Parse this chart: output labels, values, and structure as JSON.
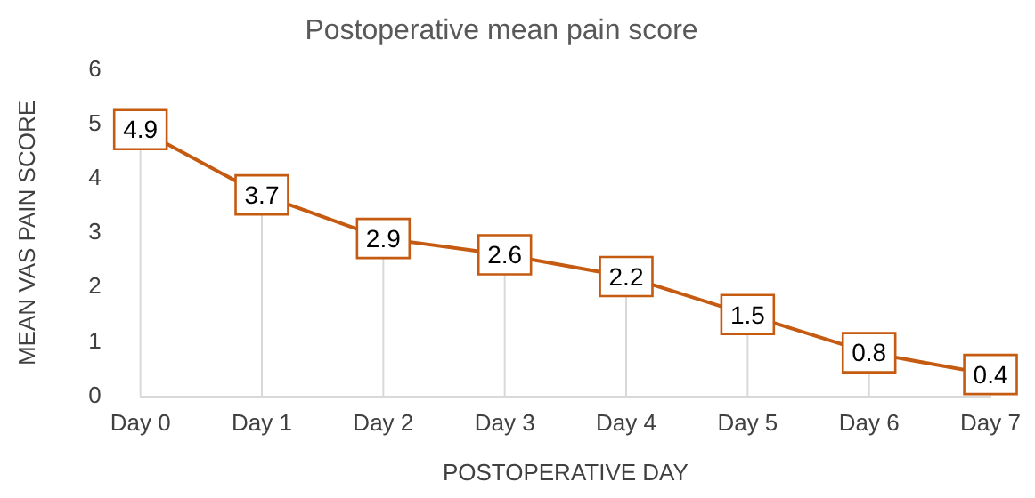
{
  "chart_data": {
    "type": "line",
    "title": "Postoperative mean pain score",
    "xlabel": "POSTOPERATIVE DAY",
    "ylabel": "MEAN VAS PAIN SCORE",
    "categories": [
      "Day 0",
      "Day 1",
      "Day 2",
      "Day 3",
      "Day 4",
      "Day 5",
      "Day 6",
      "Day 7"
    ],
    "series": [
      {
        "color": "#c55a11",
        "values": [
          4.9,
          3.7,
          2.9,
          2.6,
          2.2,
          1.5,
          0.8,
          0.4
        ]
      }
    ],
    "ylim": [
      0,
      6
    ],
    "yticks": [
      0,
      1,
      2,
      3,
      4,
      5,
      6
    ],
    "grid": false,
    "legend": false,
    "marker": "square",
    "line_style": "solid",
    "data_labels": true
  }
}
